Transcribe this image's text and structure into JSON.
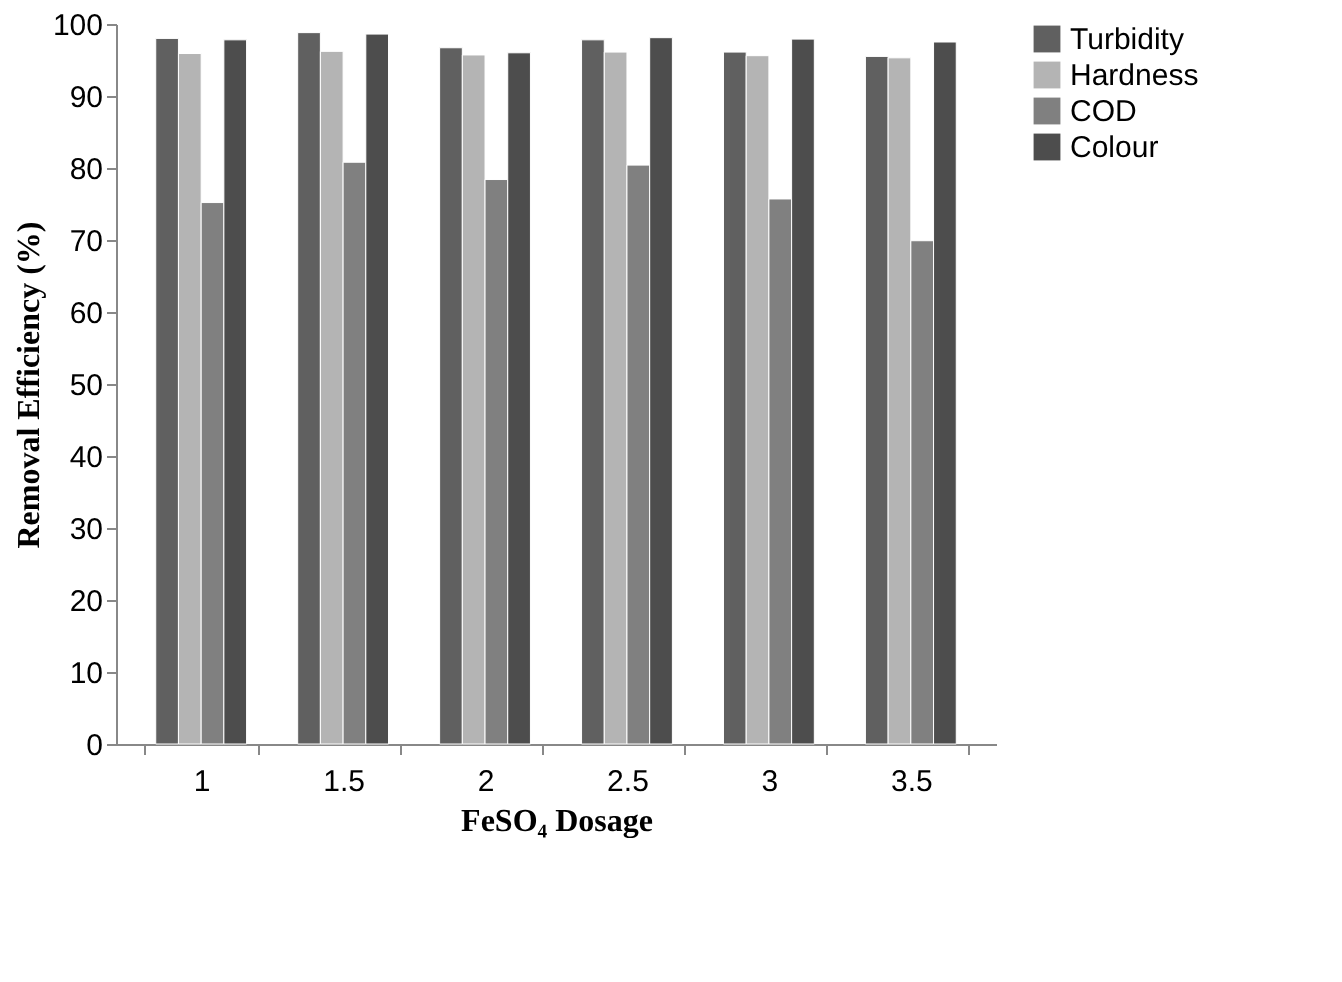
{
  "chart_data": {
    "type": "bar",
    "xlabel": "FeSO₄ Dosage",
    "ylabel": "Removal Efficiency (%)",
    "categories": [
      "1",
      "1.5",
      "2",
      "2.5",
      "3",
      "3.5"
    ],
    "series": [
      {
        "name": "Turbidity",
        "color": "#606060",
        "values": [
          98.0,
          98.8,
          96.7,
          97.8,
          96.1,
          95.5
        ]
      },
      {
        "name": "Hardness",
        "color": "#b4b4b4",
        "values": [
          95.9,
          96.2,
          95.7,
          96.1,
          95.6,
          95.3
        ]
      },
      {
        "name": "COD",
        "color": "#808080",
        "values": [
          75.2,
          80.8,
          78.4,
          80.4,
          75.7,
          69.9
        ]
      },
      {
        "name": "Colour",
        "color": "#4d4d4d",
        "values": [
          97.8,
          98.6,
          96.0,
          98.1,
          97.9,
          97.5
        ]
      }
    ],
    "ylim": [
      0,
      100
    ],
    "yticks": [
      0,
      10,
      20,
      30,
      40,
      50,
      60,
      70,
      80,
      90,
      100
    ],
    "grid": false,
    "legend": "right"
  }
}
